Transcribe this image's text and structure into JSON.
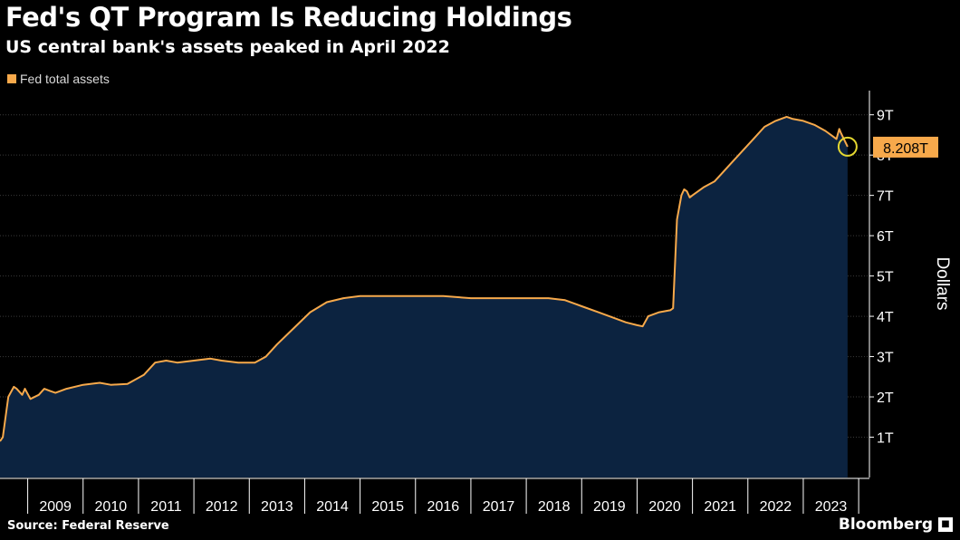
{
  "header": {
    "title": "Fed's QT Program Is Reducing Holdings",
    "subtitle": "US central bank's assets peaked in April 2022"
  },
  "legend": {
    "label": "Fed total assets"
  },
  "footer": {
    "source": "Source: Federal Reserve",
    "brand": "Bloomberg"
  },
  "colors": {
    "background": "#000000",
    "area_fill": "#0c2340",
    "line": "#f7a94b",
    "callout": "#f7a94b",
    "marker_ring": "#e5d830",
    "grid": "#3a3a3a",
    "tick_text": "#ffffff"
  },
  "chart_data": {
    "type": "area",
    "ylabel": "Dollars",
    "ylim": [
      0,
      9.6
    ],
    "xlim": [
      2008.0,
      2023.4
    ],
    "y_ticks": [
      1,
      2,
      3,
      4,
      5,
      6,
      7,
      8,
      9
    ],
    "y_tick_labels": [
      "1T",
      "2T",
      "3T",
      "4T",
      "5T",
      "6T",
      "7T",
      "8T",
      "9T"
    ],
    "x_ticks": [
      2009,
      2010,
      2011,
      2012,
      2013,
      2014,
      2015,
      2016,
      2017,
      2018,
      2019,
      2020,
      2021,
      2022,
      2023
    ],
    "x_tick_labels": [
      "2009",
      "2010",
      "2011",
      "2012",
      "2013",
      "2014",
      "2015",
      "2016",
      "2017",
      "2018",
      "2019",
      "2020",
      "2021",
      "2022",
      "2023"
    ],
    "grid": true,
    "legend_position": "top-left",
    "series": [
      {
        "name": "Fed total assets",
        "x": [
          2008.0,
          2008.05,
          2008.15,
          2008.25,
          2008.3,
          2008.4,
          2008.45,
          2008.55,
          2008.7,
          2008.8,
          2008.9,
          2009.0,
          2009.2,
          2009.5,
          2009.8,
          2010.0,
          2010.3,
          2010.6,
          2010.8,
          2011.0,
          2011.2,
          2011.5,
          2011.8,
          2012.0,
          2012.3,
          2012.6,
          2012.8,
          2013.0,
          2013.3,
          2013.6,
          2013.9,
          2014.2,
          2014.5,
          2014.8,
          2015.0,
          2015.5,
          2016.0,
          2016.5,
          2017.0,
          2017.5,
          2017.9,
          2018.2,
          2018.5,
          2018.8,
          2019.1,
          2019.3,
          2019.5,
          2019.6,
          2019.7,
          2019.9,
          2020.1,
          2020.15,
          2020.22,
          2020.3,
          2020.35,
          2020.4,
          2020.45,
          2020.5,
          2020.7,
          2020.9,
          2021.0,
          2021.2,
          2021.4,
          2021.6,
          2021.8,
          2022.0,
          2022.2,
          2022.3,
          2022.5,
          2022.7,
          2022.9,
          2023.0,
          2023.1,
          2023.15,
          2023.18,
          2023.25,
          2023.3
        ],
        "values": [
          0.9,
          1.0,
          2.0,
          2.25,
          2.2,
          2.05,
          2.2,
          1.95,
          2.05,
          2.2,
          2.15,
          2.1,
          2.2,
          2.3,
          2.35,
          2.3,
          2.32,
          2.55,
          2.85,
          2.9,
          2.85,
          2.9,
          2.95,
          2.9,
          2.85,
          2.85,
          3.0,
          3.3,
          3.7,
          4.1,
          4.35,
          4.45,
          4.5,
          4.5,
          4.5,
          4.5,
          4.5,
          4.45,
          4.45,
          4.45,
          4.45,
          4.4,
          4.25,
          4.1,
          3.95,
          3.85,
          3.78,
          3.75,
          4.0,
          4.1,
          4.15,
          4.2,
          6.4,
          7.0,
          7.15,
          7.1,
          6.95,
          7.0,
          7.2,
          7.35,
          7.5,
          7.8,
          8.1,
          8.4,
          8.7,
          8.85,
          8.95,
          8.9,
          8.85,
          8.75,
          8.6,
          8.5,
          8.4,
          8.65,
          8.55,
          8.35,
          8.208
        ]
      }
    ],
    "annotations": [
      {
        "text": "8.208T",
        "x": 2023.3,
        "y": 8.208
      }
    ]
  }
}
